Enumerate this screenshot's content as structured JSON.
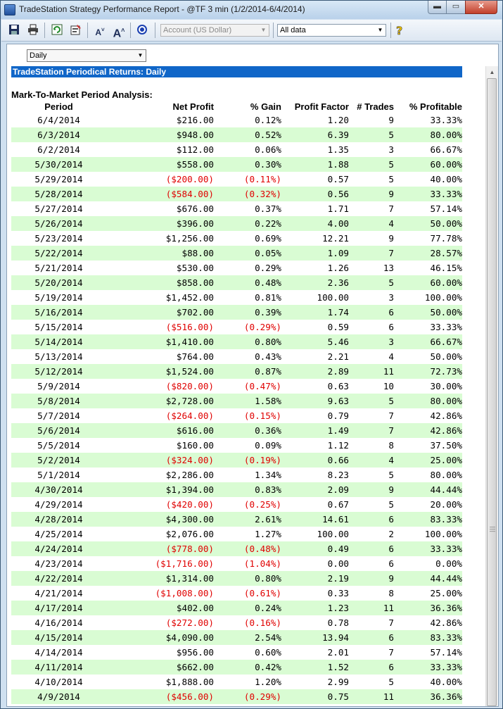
{
  "window": {
    "title": "TradeStation Strategy Performance Report - @TF 3 min (1/2/2014-6/4/2014)",
    "minimize": "▬",
    "maximize": "▭",
    "close": "✕"
  },
  "toolbar": {
    "account_combo": "Account (US Dollar)",
    "range_combo": "All data",
    "icons": [
      "save-icon",
      "print-icon",
      "refresh-icon",
      "settings-icon",
      "font-decrease-icon",
      "font-increase-icon",
      "target-icon",
      "help-icon"
    ]
  },
  "report": {
    "period_select": "Daily",
    "title": "TradeStation Periodical Returns: Daily",
    "section": "Mark-To-Market Period Analysis:",
    "columns": [
      "Period",
      "Net Profit",
      "% Gain",
      "Profit Factor",
      "# Trades",
      "% Profitable"
    ],
    "rows": [
      [
        "6/4/2014",
        "$216.00",
        "0.12%",
        "1.20",
        "9",
        "33.33%"
      ],
      [
        "6/3/2014",
        "$948.00",
        "0.52%",
        "6.39",
        "5",
        "80.00%"
      ],
      [
        "6/2/2014",
        "$112.00",
        "0.06%",
        "1.35",
        "3",
        "66.67%"
      ],
      [
        "5/30/2014",
        "$558.00",
        "0.30%",
        "1.88",
        "5",
        "60.00%"
      ],
      [
        "5/29/2014",
        "($200.00)",
        "(0.11%)",
        "0.57",
        "5",
        "40.00%"
      ],
      [
        "5/28/2014",
        "($584.00)",
        "(0.32%)",
        "0.56",
        "9",
        "33.33%"
      ],
      [
        "5/27/2014",
        "$676.00",
        "0.37%",
        "1.71",
        "7",
        "57.14%"
      ],
      [
        "5/26/2014",
        "$396.00",
        "0.22%",
        "4.00",
        "4",
        "50.00%"
      ],
      [
        "5/23/2014",
        "$1,256.00",
        "0.69%",
        "12.21",
        "9",
        "77.78%"
      ],
      [
        "5/22/2014",
        "$88.00",
        "0.05%",
        "1.09",
        "7",
        "28.57%"
      ],
      [
        "5/21/2014",
        "$530.00",
        "0.29%",
        "1.26",
        "13",
        "46.15%"
      ],
      [
        "5/20/2014",
        "$858.00",
        "0.48%",
        "2.36",
        "5",
        "60.00%"
      ],
      [
        "5/19/2014",
        "$1,452.00",
        "0.81%",
        "100.00",
        "3",
        "100.00%"
      ],
      [
        "5/16/2014",
        "$702.00",
        "0.39%",
        "1.74",
        "6",
        "50.00%"
      ],
      [
        "5/15/2014",
        "($516.00)",
        "(0.29%)",
        "0.59",
        "6",
        "33.33%"
      ],
      [
        "5/14/2014",
        "$1,410.00",
        "0.80%",
        "5.46",
        "3",
        "66.67%"
      ],
      [
        "5/13/2014",
        "$764.00",
        "0.43%",
        "2.21",
        "4",
        "50.00%"
      ],
      [
        "5/12/2014",
        "$1,524.00",
        "0.87%",
        "2.89",
        "11",
        "72.73%"
      ],
      [
        "5/9/2014",
        "($820.00)",
        "(0.47%)",
        "0.63",
        "10",
        "30.00%"
      ],
      [
        "5/8/2014",
        "$2,728.00",
        "1.58%",
        "9.63",
        "5",
        "80.00%"
      ],
      [
        "5/7/2014",
        "($264.00)",
        "(0.15%)",
        "0.79",
        "7",
        "42.86%"
      ],
      [
        "5/6/2014",
        "$616.00",
        "0.36%",
        "1.49",
        "7",
        "42.86%"
      ],
      [
        "5/5/2014",
        "$160.00",
        "0.09%",
        "1.12",
        "8",
        "37.50%"
      ],
      [
        "5/2/2014",
        "($324.00)",
        "(0.19%)",
        "0.66",
        "4",
        "25.00%"
      ],
      [
        "5/1/2014",
        "$2,286.00",
        "1.34%",
        "8.23",
        "5",
        "80.00%"
      ],
      [
        "4/30/2014",
        "$1,394.00",
        "0.83%",
        "2.09",
        "9",
        "44.44%"
      ],
      [
        "4/29/2014",
        "($420.00)",
        "(0.25%)",
        "0.67",
        "5",
        "20.00%"
      ],
      [
        "4/28/2014",
        "$4,300.00",
        "2.61%",
        "14.61",
        "6",
        "83.33%"
      ],
      [
        "4/25/2014",
        "$2,076.00",
        "1.27%",
        "100.00",
        "2",
        "100.00%"
      ],
      [
        "4/24/2014",
        "($778.00)",
        "(0.48%)",
        "0.49",
        "6",
        "33.33%"
      ],
      [
        "4/23/2014",
        "($1,716.00)",
        "(1.04%)",
        "0.00",
        "6",
        "0.00%"
      ],
      [
        "4/22/2014",
        "$1,314.00",
        "0.80%",
        "2.19",
        "9",
        "44.44%"
      ],
      [
        "4/21/2014",
        "($1,008.00)",
        "(0.61%)",
        "0.33",
        "8",
        "25.00%"
      ],
      [
        "4/17/2014",
        "$402.00",
        "0.24%",
        "1.23",
        "11",
        "36.36%"
      ],
      [
        "4/16/2014",
        "($272.00)",
        "(0.16%)",
        "0.78",
        "7",
        "42.86%"
      ],
      [
        "4/15/2014",
        "$4,090.00",
        "2.54%",
        "13.94",
        "6",
        "83.33%"
      ],
      [
        "4/14/2014",
        "$956.00",
        "0.60%",
        "2.01",
        "7",
        "57.14%"
      ],
      [
        "4/11/2014",
        "$662.00",
        "0.42%",
        "1.52",
        "6",
        "33.33%"
      ],
      [
        "4/10/2014",
        "$1,888.00",
        "1.20%",
        "2.99",
        "5",
        "40.00%"
      ],
      [
        "4/9/2014",
        "($456.00)",
        "(0.29%)",
        "0.75",
        "11",
        "36.36%"
      ]
    ]
  },
  "colors": {
    "alt_row": "#d9fcd3",
    "negative": "#e00000",
    "title_bar": "#1066c8"
  }
}
